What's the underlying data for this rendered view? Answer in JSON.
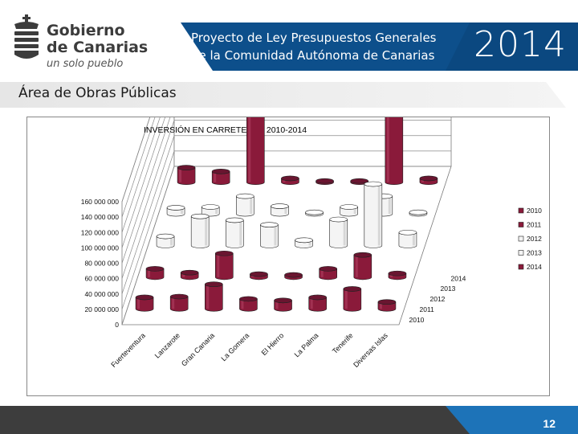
{
  "header": {
    "logo_line1": "Gobierno",
    "logo_line2": "de Canarias",
    "logo_tagline": "un solo pueblo",
    "title_line1": "Proyecto de Ley Presupuestos Generales",
    "title_line2": "de la Comunidad Autónoma de Canarias",
    "year": "2014"
  },
  "area": {
    "title": "Área de Obras Públicas"
  },
  "footer": {
    "page_number": "12"
  },
  "colors": {
    "banner_blue": "#0d4f8b",
    "footer_dark": "#3d3d3d",
    "accent_blue": "#1d73b8"
  },
  "chart_data": {
    "type": "bar",
    "title": "INVERSIÓN EN CARRETERAS 2010-2014",
    "categories": [
      "Fuerteventura",
      "Lanzarote",
      "Gran Canaria",
      "La Gomera",
      "El Hierro",
      "La Palma",
      "Tenerife",
      "Diversas Islas"
    ],
    "series": [
      {
        "name": "2010",
        "values": [
          15000000,
          16000000,
          32000000,
          13000000,
          11000000,
          15000000,
          26000000,
          9000000
        ]
      },
      {
        "name": "2011",
        "values": [
          11000000,
          6000000,
          31000000,
          4000000,
          3000000,
          11000000,
          29000000,
          5000000
        ]
      },
      {
        "name": "2012",
        "values": [
          12000000,
          38000000,
          33000000,
          27000000,
          7000000,
          34000000,
          80000000,
          17000000
        ]
      },
      {
        "name": "2013",
        "values": [
          8000000,
          9000000,
          23000000,
          10000000,
          2000000,
          9000000,
          23000000,
          2000000
        ]
      },
      {
        "name": "2014",
        "values": [
          19000000,
          14000000,
          104000000,
          5000000,
          0,
          0,
          111000000,
          5000000
        ]
      }
    ],
    "ylim": [
      0,
      160000000
    ],
    "yticks": [
      "0",
      "20 000 000",
      "40 000 000",
      "60 000 000",
      "80 000 000",
      "100 000 000",
      "120 000 000",
      "140 000 000",
      "160 000 000"
    ],
    "depth_labels": [
      "2014",
      "2013",
      "2012",
      "2011",
      "2010"
    ],
    "legend": [
      "2010",
      "2011",
      "2012",
      "2013",
      "2014"
    ],
    "legend_position": "right",
    "series_colors": [
      "#8a1a3a",
      "#8a1a3a",
      "#f4f4f4",
      "#f4f4f4",
      "#8a1a3a"
    ],
    "grid": true
  }
}
